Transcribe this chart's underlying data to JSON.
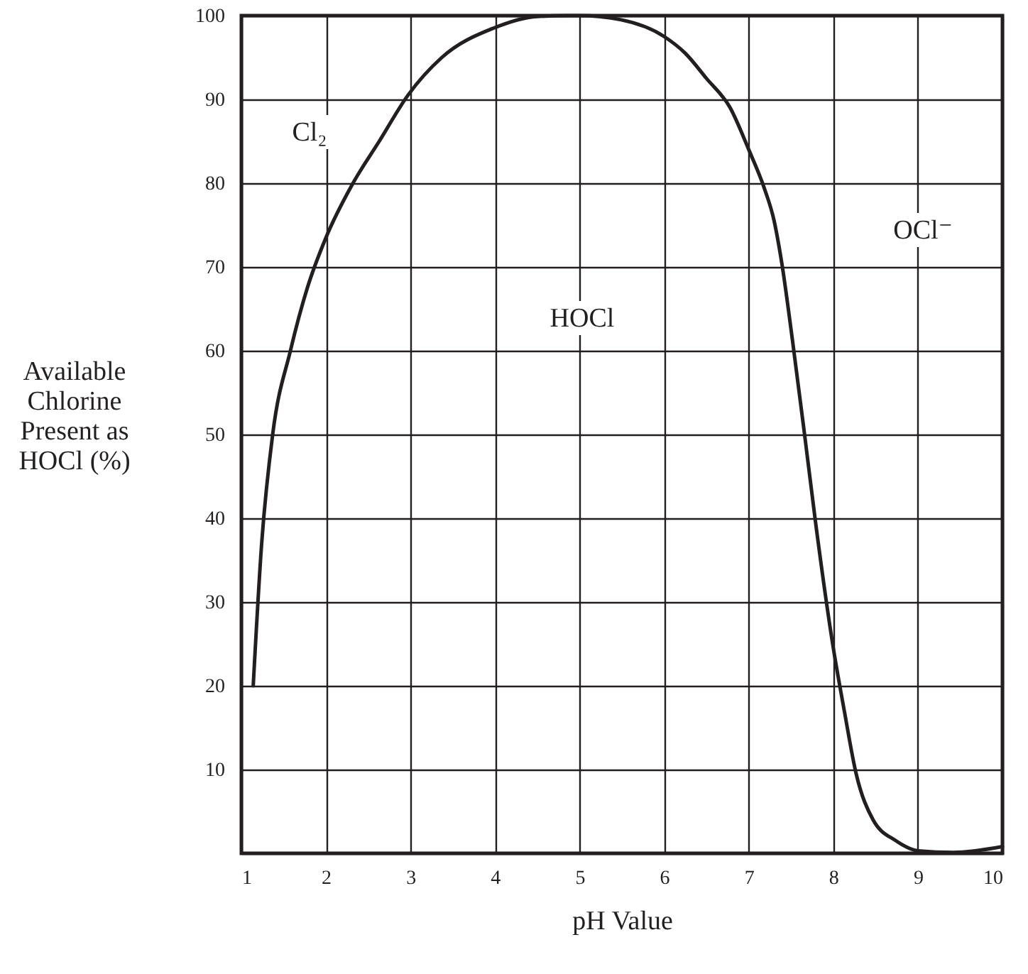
{
  "chart_data": {
    "type": "line",
    "xlabel": "pH Value",
    "ylabel": "Available\nChlorine\nPresent as\nHOCl (%)",
    "x": [
      1.14,
      1.24,
      1.37,
      1.58,
      1.78,
      2.0,
      2.32,
      2.63,
      2.97,
      3.37,
      3.98,
      4.5,
      4.86,
      5.0,
      5.49,
      6.0,
      6.25,
      6.5,
      6.78,
      7.0,
      7.18,
      7.3,
      7.39,
      7.52,
      7.66,
      7.79,
      8.0,
      8.13,
      8.27,
      8.47,
      8.74,
      9.0,
      9.42,
      10.0
    ],
    "series": [
      {
        "color": "#231f20",
        "values": [
          20,
          37,
          50,
          60,
          67.5,
          73.5,
          80,
          85,
          90.5,
          95,
          98.5,
          99.9,
          100,
          100,
          99.5,
          97.5,
          95.5,
          92.5,
          89,
          84,
          79.5,
          75.5,
          70.5,
          61,
          50,
          39.5,
          24.5,
          17,
          9.5,
          4,
          1.5,
          0.3,
          0.1,
          0.8
        ]
      }
    ],
    "xlim": [
      1,
      10
    ],
    "xticks": [
      1,
      2,
      3,
      4,
      5,
      6,
      7,
      8,
      9,
      10
    ],
    "ylim": [
      0,
      100
    ],
    "yticks": [
      {
        "value": 0,
        "label": null
      },
      10,
      20,
      30,
      40,
      50,
      60,
      70,
      80,
      90,
      100
    ],
    "grid": true,
    "marker": "none",
    "line_style": "solid",
    "annotations": [
      "Cl₂",
      "HOCl",
      "OCl⁻"
    ]
  }
}
